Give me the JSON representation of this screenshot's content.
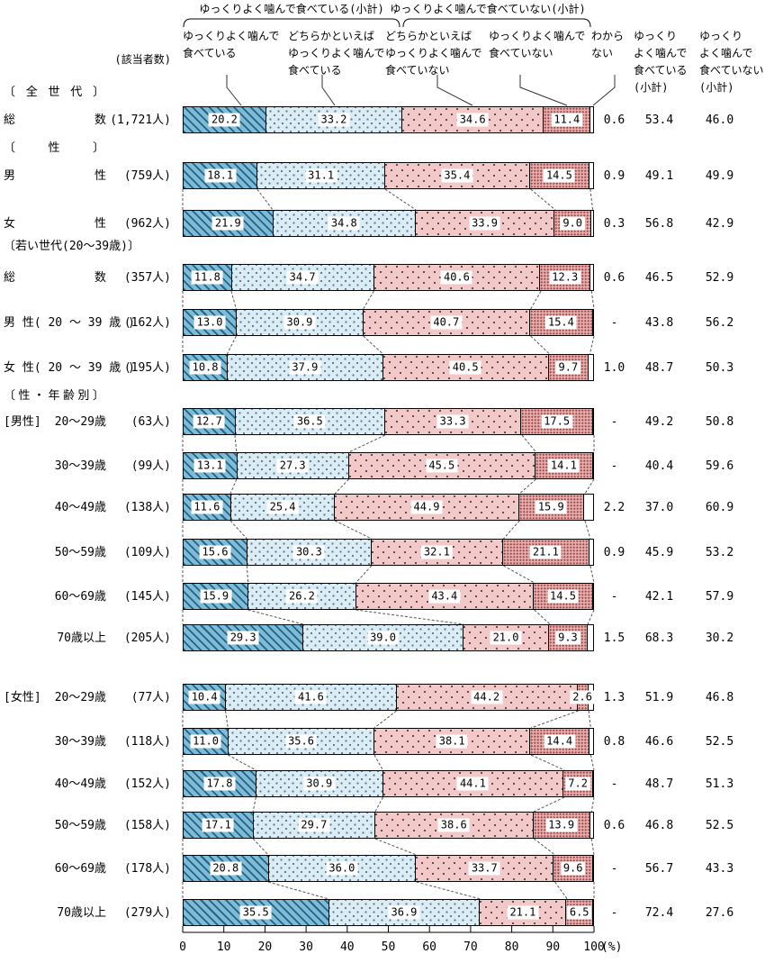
{
  "chart_data": {
    "type": "bar",
    "orientation": "horizontal-stacked",
    "unit": "(%)",
    "axis": {
      "min": 0,
      "max": 100,
      "ticks": [
        0,
        10,
        20,
        30,
        40,
        50,
        60,
        70,
        80,
        90,
        100
      ]
    },
    "respondents_header": "(該当者数)",
    "brace_groups": [
      {
        "label": "ゆっくりよく噛んで食べている(小計)"
      },
      {
        "label": "ゆっくりよく噛んで食べていない(小計)"
      }
    ],
    "legend": [
      {
        "name": "ゆっくりよく噛んで食べている",
        "lines": [
          "ゆっくりよく噛んで",
          "食べている"
        ]
      },
      {
        "name": "どちらかといえばゆっくりよく噛んで食べている",
        "lines": [
          "どちらかといえば",
          "ゆっくりよく噛んで",
          "食べている"
        ]
      },
      {
        "name": "どちらかといえばゆっくりよく噛んで食べていない",
        "lines": [
          "どちらかといえば",
          "ゆっくりよく噛んで",
          "食べていない"
        ]
      },
      {
        "name": "ゆっくりよく噛んで食べていない",
        "lines": [
          "ゆっくりよく噛んで",
          "食べていない"
        ]
      },
      {
        "name": "わからない",
        "lines": [
          "わから",
          "ない"
        ]
      }
    ],
    "right_column_headers": [
      {
        "lines": [
          "ゆっくり",
          "よく噛んで",
          "食べている",
          "(小計)"
        ]
      },
      {
        "lines": [
          "ゆっくり",
          "よく噛んで",
          "食べていない",
          "(小計)"
        ]
      }
    ],
    "colors": {
      "seg1": "#7cbcd8",
      "seg1_hatch": "#28607f",
      "seg2": "#dcecf4",
      "seg2_dot": "#54788c",
      "seg3": "#f3c8c8",
      "seg3_dot": "#3c2e2e",
      "seg4": "#eaabab",
      "seg4_dot": "#96504e",
      "seg5": "#ffffff",
      "border": "#000000",
      "connector": "#555555"
    },
    "rows": [
      {
        "section": {
          "text": "〔 全 世 代 〕",
          "spread": true
        },
        "label_type": "spread",
        "label": "総 数",
        "count": "(1,721人)",
        "values": [
          20.2,
          33.2,
          34.6,
          11.4
        ],
        "dk": "0.6",
        "sub1": "53.4",
        "sub2": "46.0",
        "connect": false
      },
      {
        "section": {
          "text": "〔 性 〕",
          "spread": true
        },
        "label_type": "spread",
        "label": "男 性",
        "count": "(759人)",
        "values": [
          18.1,
          31.1,
          35.4,
          14.5
        ],
        "dk": "0.9",
        "sub1": "49.1",
        "sub2": "49.9",
        "connect": false
      },
      {
        "label_type": "spread",
        "label": "女 性",
        "count": "(962人)",
        "values": [
          21.9,
          34.8,
          33.9,
          9.0
        ],
        "dk": "0.3",
        "sub1": "56.8",
        "sub2": "42.9",
        "connect": true
      },
      {
        "section": {
          "text": "〔若い世代(20〜39歳)〕",
          "spread": false
        },
        "label_type": "spread",
        "label": "総 数",
        "count": "(357人)",
        "values": [
          11.8,
          34.7,
          40.6,
          12.3
        ],
        "dk": "0.6",
        "sub1": "46.5",
        "sub2": "52.9",
        "connect": false
      },
      {
        "label_type": "plain",
        "label": "男 性( 20 〜 39 歳 )",
        "count": "(162人)",
        "values": [
          13.0,
          30.9,
          40.7,
          15.4
        ],
        "dk": "-",
        "sub1": "43.8",
        "sub2": "56.2",
        "connect": true
      },
      {
        "label_type": "plain",
        "label": "女 性( 20 〜 39 歳 )",
        "count": "(195人)",
        "values": [
          10.8,
          37.9,
          40.5,
          9.7
        ],
        "dk": "1.0",
        "sub1": "48.7",
        "sub2": "50.3",
        "connect": true
      },
      {
        "section": {
          "text": "〔 性 ・ 年 齢 別 〕",
          "spread": true
        },
        "prefix": "[男性]",
        "label_type": "age",
        "label": "20〜29歳",
        "count": "(63人)",
        "values": [
          12.7,
          36.5,
          33.3,
          17.5
        ],
        "dk": "-",
        "sub1": "49.2",
        "sub2": "50.8",
        "connect": false
      },
      {
        "label_type": "age",
        "label": "30〜39歳",
        "count": "(99人)",
        "values": [
          13.1,
          27.3,
          45.5,
          14.1
        ],
        "dk": "-",
        "sub1": "40.4",
        "sub2": "59.6",
        "connect": true
      },
      {
        "label_type": "age",
        "label": "40〜49歳",
        "count": "(138人)",
        "values": [
          11.6,
          25.4,
          44.9,
          15.9
        ],
        "dk": "2.2",
        "sub1": "37.0",
        "sub2": "60.9",
        "connect": true
      },
      {
        "label_type": "age",
        "label": "50〜59歳",
        "count": "(109人)",
        "values": [
          15.6,
          30.3,
          32.1,
          21.1
        ],
        "dk": "0.9",
        "sub1": "45.9",
        "sub2": "53.2",
        "connect": true
      },
      {
        "label_type": "age",
        "label": "60〜69歳",
        "count": "(145人)",
        "values": [
          15.9,
          26.2,
          43.4,
          14.5
        ],
        "dk": "-",
        "sub1": "42.1",
        "sub2": "57.9",
        "connect": true
      },
      {
        "label_type": "age",
        "label": "70歳以上",
        "count": "(205人)",
        "values": [
          29.3,
          39.0,
          21.0,
          9.3
        ],
        "dk": "1.5",
        "sub1": "68.3",
        "sub2": "30.2",
        "connect": true
      },
      {
        "prefix": "[女性]",
        "label_type": "age",
        "label": "20〜29歳",
        "count": "(77人)",
        "values": [
          10.4,
          41.6,
          44.2,
          2.6
        ],
        "dk": "1.3",
        "sub1": "51.9",
        "sub2": "46.8",
        "connect": false
      },
      {
        "label_type": "age",
        "label": "30〜39歳",
        "count": "(118人)",
        "values": [
          11.0,
          35.6,
          38.1,
          14.4
        ],
        "dk": "0.8",
        "sub1": "46.6",
        "sub2": "52.5",
        "connect": true
      },
      {
        "label_type": "age",
        "label": "40〜49歳",
        "count": "(152人)",
        "values": [
          17.8,
          30.9,
          44.1,
          7.2
        ],
        "dk": "-",
        "sub1": "48.7",
        "sub2": "51.3",
        "connect": true
      },
      {
        "label_type": "age",
        "label": "50〜59歳",
        "count": "(158人)",
        "values": [
          17.1,
          29.7,
          38.6,
          13.9
        ],
        "dk": "0.6",
        "sub1": "46.8",
        "sub2": "52.5",
        "connect": true
      },
      {
        "label_type": "age",
        "label": "60〜69歳",
        "count": "(178人)",
        "values": [
          20.8,
          36.0,
          33.7,
          9.6
        ],
        "dk": "-",
        "sub1": "56.7",
        "sub2": "43.3",
        "connect": true
      },
      {
        "label_type": "age",
        "label": "70歳以上",
        "count": "(279人)",
        "values": [
          35.5,
          36.9,
          21.1,
          6.5
        ],
        "dk": "-",
        "sub1": "72.4",
        "sub2": "27.6",
        "connect": true
      }
    ]
  }
}
